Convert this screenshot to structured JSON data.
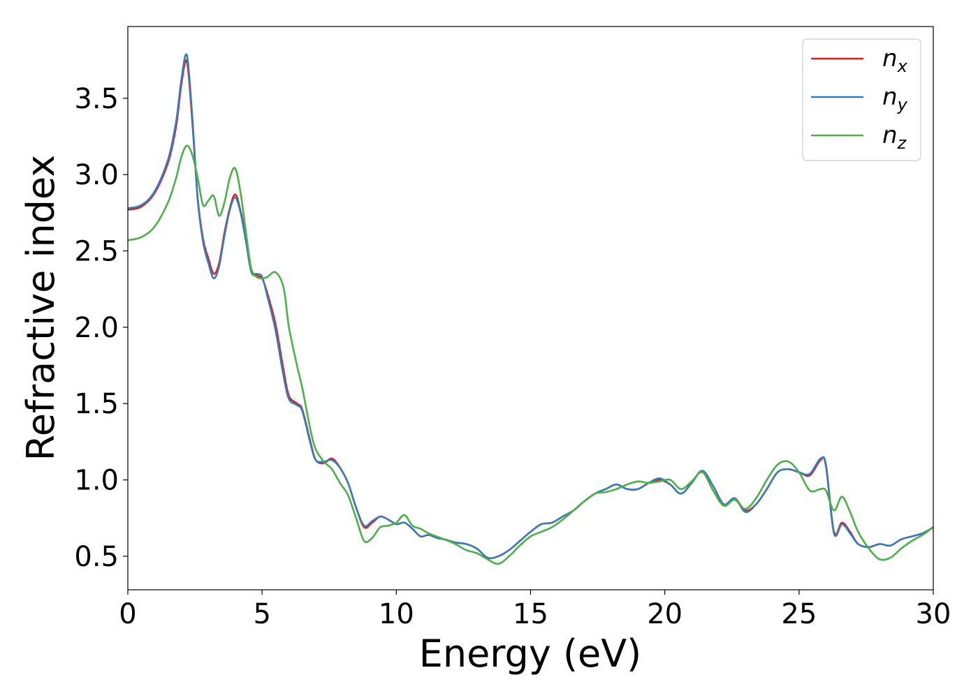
{
  "chart_data": {
    "type": "line",
    "xlabel": "Energy (eV)",
    "ylabel": "Refractive index",
    "xlim": [
      0,
      30
    ],
    "ylim": [
      0.28,
      3.97
    ],
    "xticks": [
      "0",
      "5",
      "10",
      "15",
      "20",
      "25",
      "30"
    ],
    "yticks": [
      "0.5",
      "1.0",
      "1.5",
      "2.0",
      "2.5",
      "3.0",
      "3.5"
    ],
    "legend_position": "top-right",
    "grid": false,
    "series": [
      {
        "name": "n_x",
        "label_base": "n",
        "label_sub": "x",
        "color": "#e41a1c",
        "x": [
          0,
          0.5,
          1,
          1.5,
          1.8,
          2.0,
          2.2,
          2.4,
          2.6,
          2.8,
          3.0,
          3.2,
          3.4,
          3.6,
          3.8,
          4.0,
          4.2,
          4.4,
          4.6,
          4.8,
          5.0,
          5.2,
          5.5,
          5.8,
          6.0,
          6.3,
          6.5,
          6.8,
          7.0,
          7.3,
          7.6,
          7.9,
          8.2,
          8.5,
          8.8,
          9.1,
          9.4,
          9.7,
          10.0,
          10.3,
          10.6,
          10.9,
          11.2,
          11.5,
          11.8,
          12.2,
          12.6,
          13.0,
          13.4,
          13.8,
          14.2,
          14.6,
          15.0,
          15.4,
          15.8,
          16.2,
          16.6,
          17.0,
          17.4,
          17.8,
          18.2,
          18.6,
          19.0,
          19.4,
          19.8,
          20.2,
          20.6,
          21.0,
          21.4,
          21.8,
          22.2,
          22.6,
          23.0,
          23.4,
          23.8,
          24.2,
          24.6,
          25.0,
          25.4,
          25.8,
          26.0,
          26.3,
          26.6,
          26.9,
          27.2,
          27.6,
          28.0,
          28.4,
          28.8,
          29.2,
          29.6,
          30.0
        ],
        "y": [
          2.77,
          2.79,
          2.88,
          3.08,
          3.32,
          3.6,
          3.74,
          3.35,
          2.85,
          2.58,
          2.45,
          2.35,
          2.42,
          2.62,
          2.78,
          2.87,
          2.76,
          2.58,
          2.38,
          2.34,
          2.32,
          2.22,
          2.02,
          1.72,
          1.55,
          1.5,
          1.46,
          1.25,
          1.13,
          1.11,
          1.14,
          1.08,
          0.98,
          0.82,
          0.69,
          0.72,
          0.76,
          0.74,
          0.71,
          0.72,
          0.68,
          0.63,
          0.64,
          0.62,
          0.61,
          0.59,
          0.58,
          0.55,
          0.49,
          0.5,
          0.54,
          0.6,
          0.66,
          0.71,
          0.72,
          0.76,
          0.8,
          0.86,
          0.91,
          0.94,
          0.97,
          0.94,
          0.94,
          0.98,
          1.0,
          0.97,
          0.91,
          0.98,
          1.06,
          0.96,
          0.84,
          0.88,
          0.8,
          0.84,
          0.94,
          1.05,
          1.07,
          1.05,
          1.03,
          1.13,
          1.1,
          0.66,
          0.72,
          0.66,
          0.58,
          0.56,
          0.58,
          0.57,
          0.61,
          0.63,
          0.65,
          0.69
        ]
      },
      {
        "name": "n_y",
        "label_base": "n",
        "label_sub": "y",
        "color": "#377eb8",
        "x": [
          0,
          0.5,
          1,
          1.5,
          1.8,
          2.0,
          2.2,
          2.4,
          2.6,
          2.8,
          3.0,
          3.2,
          3.4,
          3.6,
          3.8,
          4.0,
          4.2,
          4.4,
          4.6,
          4.8,
          5.0,
          5.2,
          5.5,
          5.8,
          6.0,
          6.3,
          6.5,
          6.8,
          7.0,
          7.3,
          7.6,
          7.9,
          8.2,
          8.5,
          8.8,
          9.1,
          9.4,
          9.7,
          10.0,
          10.3,
          10.6,
          10.9,
          11.2,
          11.5,
          11.8,
          12.2,
          12.6,
          13.0,
          13.4,
          13.8,
          14.2,
          14.6,
          15.0,
          15.4,
          15.8,
          16.2,
          16.6,
          17.0,
          17.4,
          17.8,
          18.2,
          18.6,
          19.0,
          19.4,
          19.8,
          20.2,
          20.6,
          21.0,
          21.4,
          21.8,
          22.2,
          22.6,
          23.0,
          23.4,
          23.8,
          24.2,
          24.6,
          25.0,
          25.4,
          25.8,
          26.0,
          26.3,
          26.6,
          26.9,
          27.2,
          27.6,
          28.0,
          28.4,
          28.8,
          29.2,
          29.6,
          30.0
        ],
        "y": [
          2.78,
          2.8,
          2.89,
          3.1,
          3.35,
          3.63,
          3.78,
          3.38,
          2.84,
          2.56,
          2.42,
          2.32,
          2.4,
          2.6,
          2.77,
          2.85,
          2.75,
          2.56,
          2.36,
          2.35,
          2.33,
          2.2,
          1.98,
          1.68,
          1.53,
          1.49,
          1.45,
          1.24,
          1.13,
          1.12,
          1.13,
          1.08,
          0.98,
          0.82,
          0.7,
          0.73,
          0.76,
          0.74,
          0.71,
          0.72,
          0.68,
          0.63,
          0.64,
          0.62,
          0.61,
          0.59,
          0.58,
          0.55,
          0.49,
          0.5,
          0.54,
          0.6,
          0.66,
          0.71,
          0.72,
          0.76,
          0.8,
          0.86,
          0.91,
          0.94,
          0.97,
          0.94,
          0.94,
          0.98,
          1.01,
          0.97,
          0.91,
          0.98,
          1.06,
          0.96,
          0.84,
          0.88,
          0.79,
          0.84,
          0.94,
          1.05,
          1.07,
          1.05,
          1.04,
          1.14,
          1.09,
          0.65,
          0.71,
          0.65,
          0.58,
          0.56,
          0.58,
          0.57,
          0.61,
          0.63,
          0.65,
          0.69
        ]
      },
      {
        "name": "n_z",
        "label_base": "n",
        "label_sub": "z",
        "color": "#4daf4a",
        "x": [
          0,
          0.5,
          1,
          1.5,
          1.8,
          2.0,
          2.2,
          2.4,
          2.6,
          2.8,
          3.0,
          3.2,
          3.4,
          3.6,
          3.8,
          4.0,
          4.2,
          4.4,
          4.6,
          4.8,
          5.0,
          5.2,
          5.5,
          5.8,
          6.0,
          6.3,
          6.5,
          6.8,
          7.0,
          7.3,
          7.6,
          7.9,
          8.2,
          8.5,
          8.8,
          9.1,
          9.4,
          9.7,
          10.0,
          10.3,
          10.6,
          10.9,
          11.2,
          11.5,
          11.8,
          12.2,
          12.6,
          13.0,
          13.4,
          13.8,
          14.2,
          14.6,
          15.0,
          15.4,
          15.8,
          16.2,
          16.6,
          17.0,
          17.4,
          17.8,
          18.2,
          18.6,
          19.0,
          19.4,
          19.8,
          20.2,
          20.6,
          21.0,
          21.4,
          21.8,
          22.2,
          22.6,
          23.0,
          23.4,
          23.8,
          24.2,
          24.6,
          25.0,
          25.4,
          25.8,
          26.0,
          26.3,
          26.6,
          26.9,
          27.2,
          27.6,
          28.0,
          28.4,
          28.8,
          29.2,
          29.6,
          30.0
        ],
        "y": [
          2.57,
          2.59,
          2.66,
          2.82,
          2.98,
          3.12,
          3.19,
          3.13,
          2.98,
          2.8,
          2.83,
          2.86,
          2.73,
          2.82,
          2.98,
          3.04,
          2.88,
          2.62,
          2.38,
          2.33,
          2.32,
          2.33,
          2.36,
          2.26,
          2.0,
          1.75,
          1.6,
          1.33,
          1.2,
          1.12,
          1.07,
          0.98,
          0.9,
          0.75,
          0.6,
          0.62,
          0.69,
          0.7,
          0.72,
          0.77,
          0.7,
          0.68,
          0.65,
          0.63,
          0.61,
          0.58,
          0.54,
          0.52,
          0.48,
          0.45,
          0.5,
          0.57,
          0.63,
          0.66,
          0.69,
          0.74,
          0.8,
          0.86,
          0.91,
          0.92,
          0.94,
          0.97,
          0.99,
          0.98,
          0.99,
          1.0,
          0.94,
          0.99,
          1.05,
          0.93,
          0.83,
          0.87,
          0.81,
          0.88,
          1.0,
          1.1,
          1.12,
          1.05,
          0.93,
          0.94,
          0.93,
          0.8,
          0.89,
          0.79,
          0.66,
          0.55,
          0.48,
          0.49,
          0.55,
          0.6,
          0.64,
          0.69
        ]
      }
    ]
  }
}
